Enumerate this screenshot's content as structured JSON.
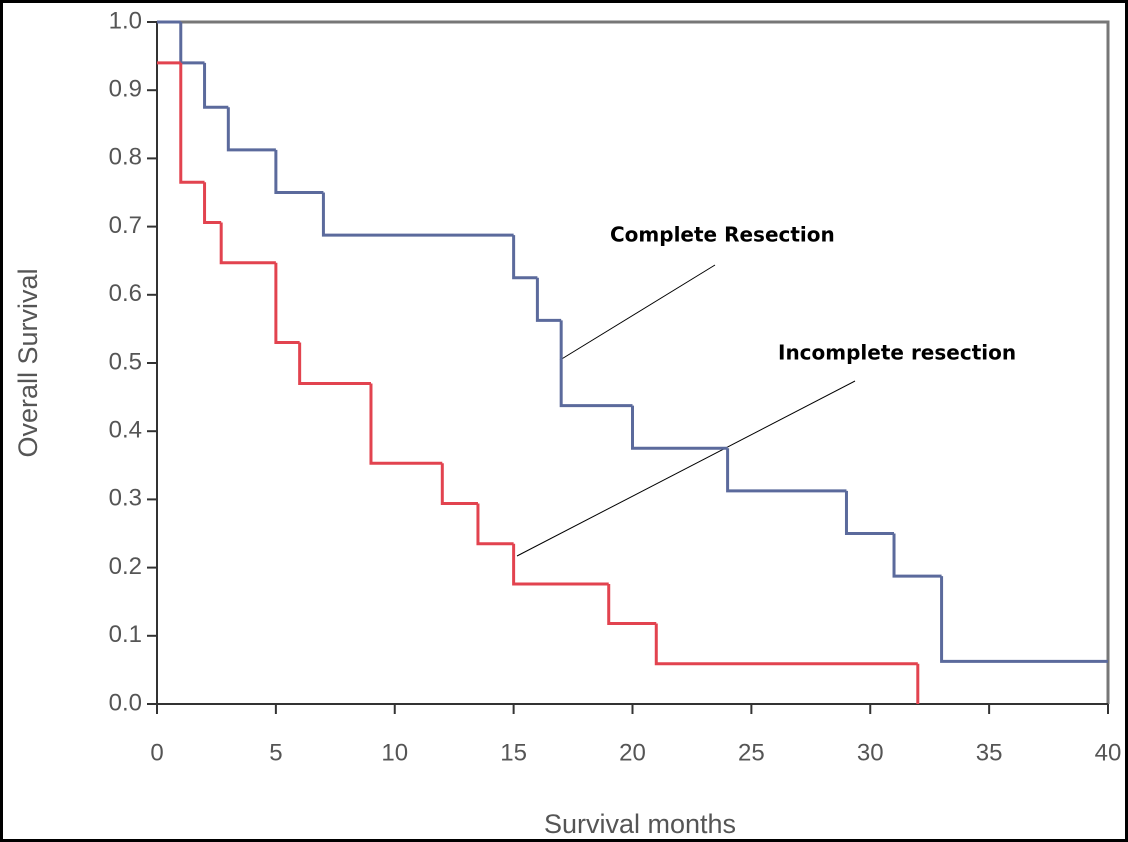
{
  "chart_data": {
    "type": "step",
    "x_label": "Survival months",
    "y_label": "Overall Survival",
    "xlim": [
      0,
      40
    ],
    "xticks": [
      0,
      5,
      10,
      15,
      20,
      25,
      30,
      35,
      40
    ],
    "ylim": [
      0,
      1
    ],
    "yticks": [
      {
        "value": 0,
        "label": "0.0"
      },
      0.1,
      0.2,
      0.3,
      0.4,
      0.5,
      0.6,
      0.7,
      0.8,
      0.9,
      {
        "value": 1,
        "label": "1.0"
      }
    ],
    "series": [
      {
        "name": "Complete Resection",
        "color": "#5b6a9c",
        "x": [
          0,
          1,
          2,
          3,
          5,
          7,
          15,
          16,
          17,
          20,
          24,
          29,
          31,
          33,
          40
        ],
        "values": [
          1.0,
          0.94,
          0.875,
          0.8125,
          0.75,
          0.6875,
          0.625,
          0.5625,
          0.4375,
          0.375,
          0.3125,
          0.25,
          0.1875,
          0.0625,
          0.0625
        ]
      },
      {
        "name": "Incomplete resection",
        "color": "#e2434f",
        "x": [
          0,
          1,
          2,
          2.7,
          5,
          6,
          9,
          12,
          13.5,
          15,
          19,
          21,
          32
        ],
        "values": [
          0.94,
          0.765,
          0.706,
          0.647,
          0.53,
          0.47,
          0.353,
          0.294,
          0.235,
          0.176,
          0.118,
          0.059,
          0
        ]
      }
    ]
  }
}
